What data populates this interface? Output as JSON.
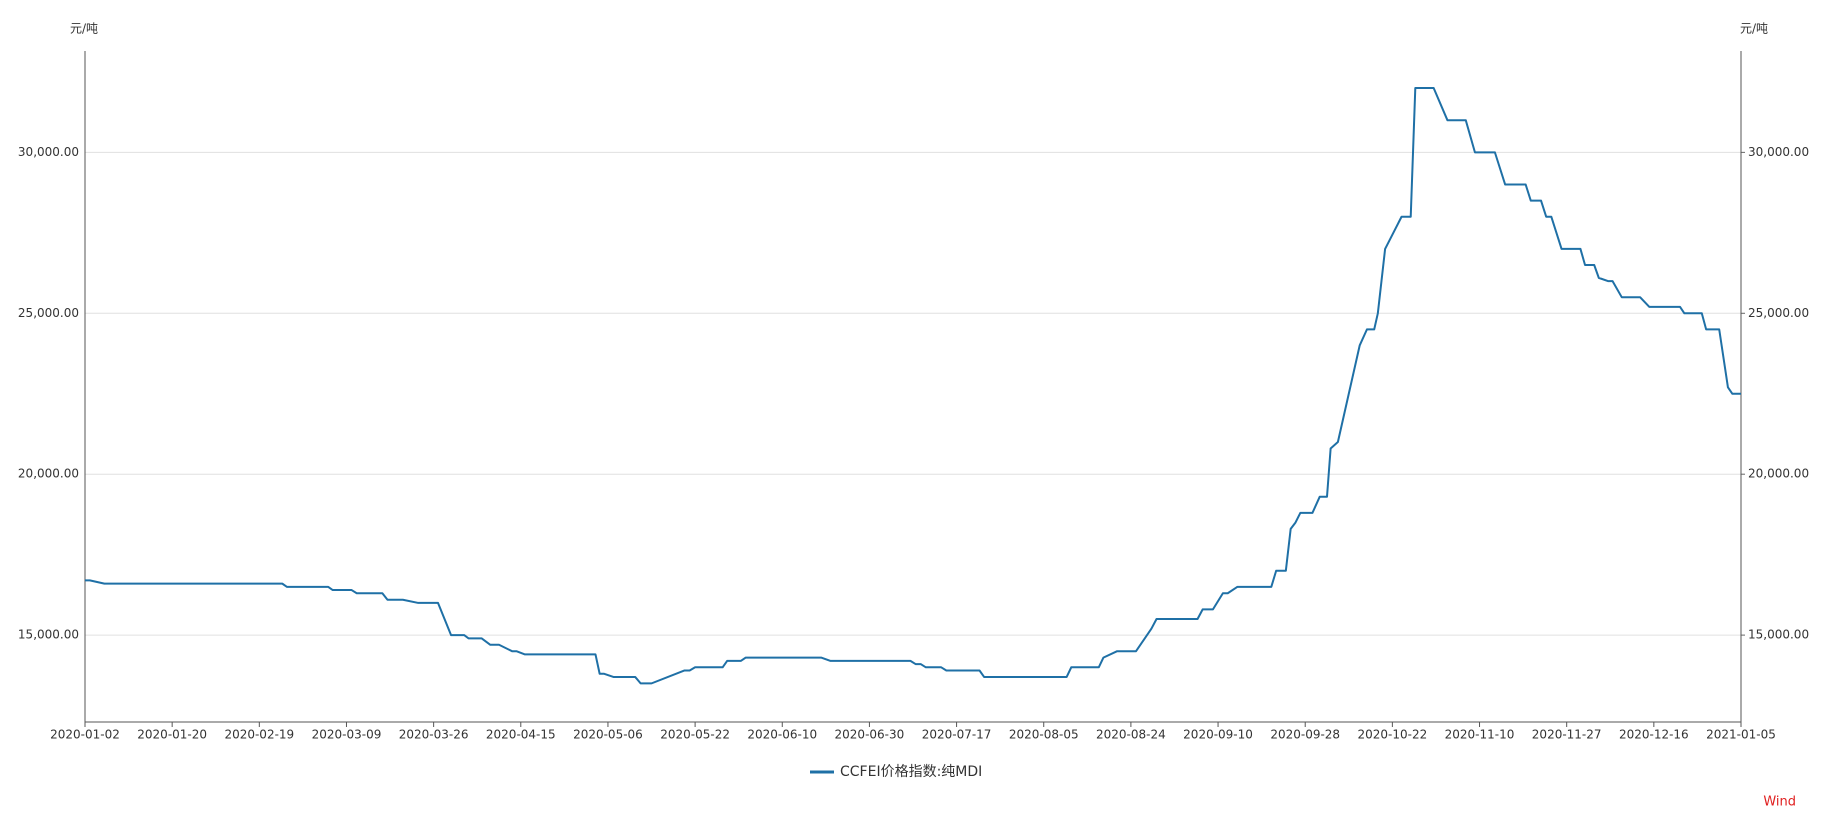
{
  "chart_data": {
    "type": "line",
    "y_label": "元/吨",
    "y2_label": "元/吨",
    "source": "Wind",
    "series": [
      {
        "name": "CCFEI价格指数:纯MDI",
        "color": "#1f70a6",
        "x": [
          "2020-01-02",
          "2020-01-03",
          "2020-01-06",
          "2020-02-24",
          "2020-02-25",
          "2020-03-05",
          "2020-03-06",
          "2020-03-10",
          "2020-03-11",
          "2020-03-16",
          "2020-03-17",
          "2020-03-20",
          "2020-03-23",
          "2020-03-27",
          "2020-03-30",
          "2020-04-02",
          "2020-04-03",
          "2020-04-06",
          "2020-04-08",
          "2020-04-10",
          "2020-04-13",
          "2020-04-14",
          "2020-04-16",
          "2020-05-03",
          "2020-05-04",
          "2020-05-05",
          "2020-05-07",
          "2020-05-11",
          "2020-05-12",
          "2020-05-14",
          "2020-05-20",
          "2020-05-21",
          "2020-05-22",
          "2020-05-28",
          "2020-05-29",
          "2020-06-01",
          "2020-06-02",
          "2020-06-19",
          "2020-06-21",
          "2020-07-08",
          "2020-07-09",
          "2020-07-10",
          "2020-07-11",
          "2020-07-14",
          "2020-07-15",
          "2020-07-22",
          "2020-07-23",
          "2020-08-10",
          "2020-08-11",
          "2020-08-17",
          "2020-08-18",
          "2020-08-21",
          "2020-08-25",
          "2020-08-28",
          "2020-08-29",
          "2020-09-06",
          "2020-09-07",
          "2020-09-09",
          "2020-09-11",
          "2020-09-12",
          "2020-09-14",
          "2020-09-21",
          "2020-09-22",
          "2020-09-24",
          "2020-09-25",
          "2020-09-26",
          "2020-09-27",
          "2020-09-30",
          "2020-10-02",
          "2020-10-04",
          "2020-10-05",
          "2020-10-07",
          "2020-10-13",
          "2020-10-15",
          "2020-10-17",
          "2020-10-18",
          "2020-10-20",
          "2020-10-24",
          "2020-10-26",
          "2020-10-27",
          "2020-10-31",
          "2020-11-03",
          "2020-11-07",
          "2020-11-09",
          "2020-11-13",
          "2020-11-15",
          "2020-11-19",
          "2020-11-20",
          "2020-11-22",
          "2020-11-23",
          "2020-11-24",
          "2020-11-26",
          "2020-11-30",
          "2020-12-01",
          "2020-12-03",
          "2020-12-04",
          "2020-12-06",
          "2020-12-07",
          "2020-12-09",
          "2020-12-13",
          "2020-12-15",
          "2020-12-22",
          "2020-12-23",
          "2020-12-27",
          "2020-12-28",
          "2020-12-31",
          "2021-01-02",
          "2021-01-03",
          "2021-01-05"
        ],
        "values": [
          16700,
          16700,
          16600,
          16600,
          16500,
          16500,
          16400,
          16400,
          16300,
          16300,
          16100,
          16100,
          16000,
          16000,
          15000,
          15000,
          14900,
          14900,
          14700,
          14700,
          14500,
          14500,
          14400,
          14400,
          13800,
          13800,
          13700,
          13700,
          13500,
          13500,
          13900,
          13900,
          14000,
          14000,
          14200,
          14200,
          14300,
          14300,
          14200,
          14200,
          14100,
          14100,
          14000,
          14000,
          13900,
          13900,
          13700,
          13700,
          14000,
          14000,
          14300,
          14500,
          14500,
          15200,
          15500,
          15500,
          15800,
          15800,
          16300,
          16300,
          16500,
          16500,
          17000,
          17000,
          18300,
          18500,
          18800,
          18800,
          19300,
          19300,
          20800,
          21000,
          24000,
          24500,
          24500,
          25000,
          27000,
          28000,
          28000,
          32000,
          32000,
          31000,
          31000,
          30000,
          30000,
          29000,
          29000,
          28500,
          28500,
          28000,
          28000,
          27000,
          27000,
          26500,
          26500,
          26100,
          26000,
          26000,
          25500,
          25500,
          25200,
          25200,
          25000,
          25000,
          24500,
          24500,
          22700,
          22500,
          22500
        ]
      }
    ],
    "xlim": [
      "2020-01-02",
      "2021-01-05"
    ],
    "xticks": [
      "2020-01-02",
      "2020-01-20",
      "2020-02-19",
      "2020-03-09",
      "2020-03-26",
      "2020-04-15",
      "2020-05-06",
      "2020-05-22",
      "2020-06-10",
      "2020-06-30",
      "2020-07-17",
      "2020-08-05",
      "2020-08-24",
      "2020-09-10",
      "2020-09-28",
      "2020-10-22",
      "2020-11-10",
      "2020-11-27",
      "2020-12-16",
      "2021-01-05"
    ],
    "ylim": [
      12300,
      33150
    ],
    "yticks": [
      {
        "value": 15000,
        "label": "15,000.00"
      },
      {
        "value": 20000,
        "label": "20,000.00"
      },
      {
        "value": 25000,
        "label": "25,000.00"
      },
      {
        "value": 30000,
        "label": "30,000.00"
      }
    ],
    "y2lim": [
      12300,
      33150
    ],
    "y2ticks": [
      {
        "value": 15000,
        "label": "15,000.00"
      },
      {
        "value": 20000,
        "label": "20,000.00"
      },
      {
        "value": 25000,
        "label": "25,000.00"
      },
      {
        "value": 30000,
        "label": "30,000.00"
      }
    ],
    "grid": true,
    "legend": "bottom"
  }
}
